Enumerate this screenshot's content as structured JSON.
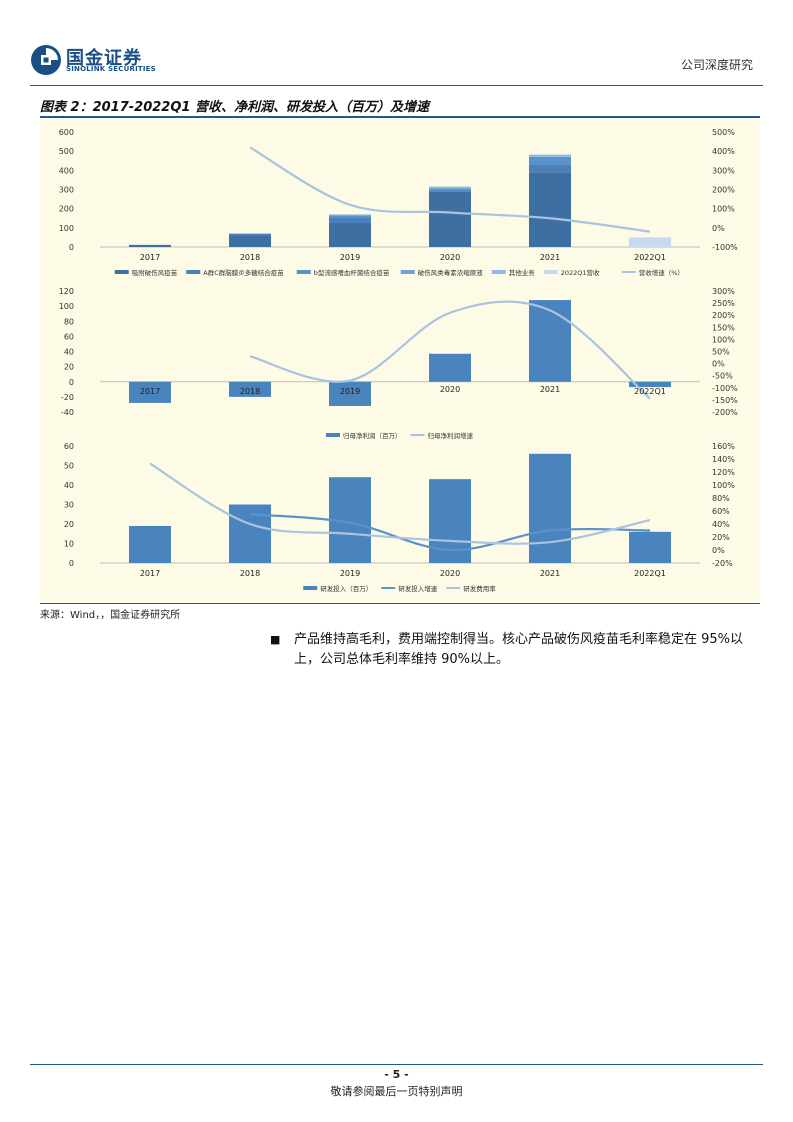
{
  "header": {
    "brand_cn": "国金证券",
    "brand_en": "SINOLINK SECURITIES",
    "doc_type": "公司深度研究"
  },
  "figure": {
    "title": "图表 2：2017-2022Q1 营收、净利润、研发投入（百万）及增速",
    "source": "来源：Wind，，国金证券研究所"
  },
  "chart_data": [
    {
      "type": "bar",
      "categories": [
        "2017",
        "2018",
        "2019",
        "2020",
        "2021",
        "2022Q1"
      ],
      "ylim": [
        0,
        600
      ],
      "yticks": [
        "600",
        "500",
        "400",
        "300",
        "200",
        "100",
        "0"
      ],
      "y2lim": [
        -100,
        500
      ],
      "y2ticks": [
        "500%",
        "400%",
        "300%",
        "200%",
        "100%",
        "0%",
        "-100%"
      ],
      "stacked": true,
      "series": [
        {
          "name": "吸附破伤风疫苗",
          "values": [
            11,
            60,
            125,
            290,
            390,
            0
          ],
          "color": "#3e6fa3"
        },
        {
          "name": "A群C群脑膜炎多糖结合疫苗",
          "values": [
            0,
            8,
            30,
            0,
            40,
            0
          ],
          "color": "#4a80bc"
        },
        {
          "name": "b型流感嗜血杆菌结合疫苗",
          "values": [
            0,
            2,
            10,
            15,
            40,
            0
          ],
          "color": "#5a92cc"
        },
        {
          "name": "破伤风类毒素浓缩原液",
          "values": [
            0,
            0,
            0,
            0,
            0,
            0
          ],
          "color": "#6aa2d9"
        },
        {
          "name": "其他业务",
          "values": [
            0,
            0,
            5,
            10,
            12,
            0
          ],
          "color": "#8fb9e2"
        },
        {
          "name": "2022Q1营收",
          "values": [
            0,
            0,
            0,
            0,
            0,
            50
          ],
          "color": "#c6d9ee"
        }
      ],
      "lines": [
        {
          "name": "营收增速（%）",
          "values": [
            null,
            420,
            120,
            80,
            50,
            -20
          ],
          "color": "#a9c3e1"
        }
      ]
    },
    {
      "type": "bar",
      "categories": [
        "2017",
        "2018",
        "2019",
        "2020",
        "2021",
        "2022Q1"
      ],
      "ylim": [
        -40,
        120
      ],
      "yticks": [
        "120",
        "100",
        "80",
        "60",
        "40",
        "20",
        "0",
        "-20",
        "-40"
      ],
      "y2lim": [
        -200,
        300
      ],
      "y2ticks": [
        "300%",
        "250%",
        "200%",
        "150%",
        "100%",
        "50%",
        "0%",
        "-50%",
        "-100%",
        "-150%",
        "-200%"
      ],
      "series": [
        {
          "name": "归母净利润（百万）",
          "values": [
            -28,
            -20,
            -32,
            37,
            108,
            -7
          ],
          "color": "#4a84bf"
        }
      ],
      "lines": [
        {
          "name": "归母净利润增速",
          "values": [
            null,
            30,
            -70,
            210,
            220,
            -145
          ],
          "color": "#a9c3e1"
        }
      ]
    },
    {
      "type": "bar",
      "categories": [
        "2017",
        "2018",
        "2019",
        "2020",
        "2021",
        "2022Q1"
      ],
      "ylim": [
        0,
        60
      ],
      "yticks": [
        "60",
        "50",
        "40",
        "30",
        "20",
        "10",
        "0"
      ],
      "y2lim": [
        -20,
        160
      ],
      "y2ticks": [
        "160%",
        "140%",
        "120%",
        "100%",
        "80%",
        "60%",
        "40%",
        "20%",
        "0%",
        "-20%"
      ],
      "series": [
        {
          "name": "研发投入（百万）",
          "values": [
            19,
            30,
            44,
            43,
            56,
            16
          ],
          "color": "#4a84bf"
        }
      ],
      "lines": [
        {
          "name": "研发投入增速",
          "values": [
            null,
            55,
            42,
            0,
            30,
            30
          ],
          "color": "#5a92cc"
        },
        {
          "name": "研发费用率",
          "values": [
            133,
            40,
            25,
            14,
            12,
            46
          ],
          "color": "#a9c3e1"
        }
      ]
    }
  ],
  "body": {
    "bullet": "■",
    "paragraph": "产品维持高毛利，费用端控制得当。核心产品破伤风疫苗毛利率稳定在 95%以上，公司总体毛利率维持 90%以上。"
  },
  "footer": {
    "page": "- 5 -",
    "disclaimer": "敬请参阅最后一页特别声明"
  }
}
